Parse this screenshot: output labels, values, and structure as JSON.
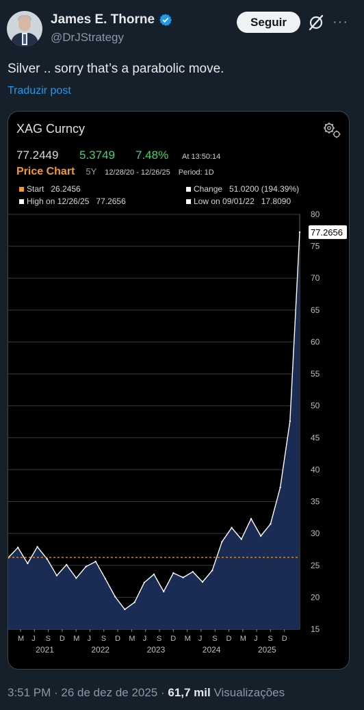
{
  "author": {
    "name": "James E. Thorne",
    "handle": "@DrJStrategy"
  },
  "actions": {
    "follow_label": "Seguir",
    "grok_icon": "grok-icon",
    "more_icon": "more-icon",
    "more_glyph": "···"
  },
  "post": {
    "text": "Silver .. sorry that’s a parabolic move.",
    "translate": "Traduzir post"
  },
  "card": {
    "ticker": "XAG Curncy",
    "last": "77.2449",
    "change": "5.3749",
    "change_pct": "7.48%",
    "time": "At 13:50:14",
    "title": "Price Chart",
    "range": "5Y",
    "dates": "12/28/20 - 12/26/25",
    "period": "Period: 1D",
    "stats": {
      "start_label": "Start",
      "start_value": "26.2456",
      "change_label": "Change",
      "change_value": "51.0200 (194.39%)",
      "high_label": "High on 12/26/25",
      "high_value": "77.2656",
      "low_label": "Low on 09/01/22",
      "low_value": "17.8090"
    }
  },
  "chart_data": {
    "type": "area",
    "ylim": [
      15,
      80
    ],
    "y_ticks": [
      "15",
      "20",
      "25",
      "30",
      "35",
      "40",
      "45",
      "50",
      "55",
      "60",
      "65",
      "70",
      "75",
      "80"
    ],
    "x_months": [
      "M",
      "J",
      "S",
      "D",
      "M",
      "J",
      "S",
      "D",
      "M",
      "J",
      "S",
      "D",
      "M",
      "J",
      "S",
      "D",
      "M",
      "J",
      "S",
      "D"
    ],
    "x_years": [
      "2021",
      "2022",
      "2023",
      "2024",
      "2025"
    ],
    "reference_line": 26.2456,
    "last_label": "77.2656",
    "x": [
      0,
      2,
      4,
      6,
      8,
      10,
      12,
      14,
      16,
      18,
      20,
      22,
      24,
      26,
      28,
      30,
      32,
      34,
      36,
      38,
      40,
      42,
      44,
      46,
      48,
      50,
      52,
      54,
      56,
      58,
      60
    ],
    "values": [
      26.2,
      27.8,
      25.3,
      27.9,
      26.0,
      23.4,
      25.1,
      23.0,
      24.8,
      25.6,
      22.9,
      20.1,
      18.1,
      19.2,
      22.3,
      23.6,
      20.9,
      23.8,
      23.1,
      24.0,
      22.4,
      24.2,
      28.7,
      30.9,
      29.1,
      32.3,
      29.6,
      31.5,
      37.2,
      47.6,
      77.2
    ]
  },
  "colors": {
    "accent": "#1d9bf0",
    "green": "#3fd46a",
    "orange": "#f09a30",
    "area": "#1b2c54"
  },
  "footer": {
    "time": "3:51 PM · 26 de dez de 2025 · ",
    "views": "61,7 mil",
    "views_label": " Visualizações"
  }
}
